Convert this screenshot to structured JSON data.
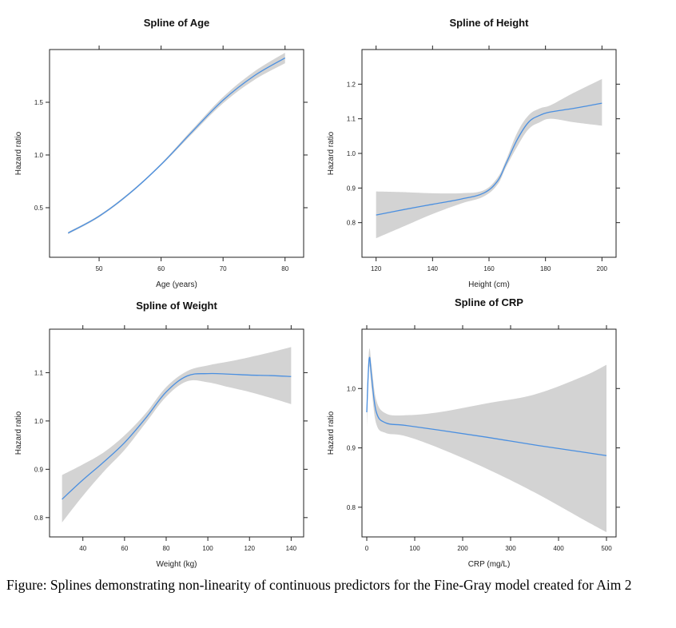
{
  "caption": "Figure: Splines demonstrating non-linearity of continuous predictors for the Fine-Gray model created for Aim 2",
  "colors": {
    "fit": "#4a8fe0",
    "band": "#d3d3d3",
    "frame": "#222222"
  },
  "chart_data": [
    {
      "type": "line",
      "title": "Spline of Age",
      "xlabel": "Age (years)",
      "ylabel": "Hazard ratio",
      "xlim": [
        42,
        83
      ],
      "ylim": [
        0.03,
        2.0
      ],
      "xticks": [
        50,
        60,
        70,
        80
      ],
      "yticks": [
        0.5,
        1.0,
        1.5
      ],
      "xtick_labels": [
        "50",
        "60",
        "70",
        "80"
      ],
      "ytick_labels": [
        "0.5",
        "1.0",
        "1.5"
      ],
      "x": [
        45,
        50,
        55,
        60,
        65,
        70,
        75,
        80
      ],
      "y": [
        0.26,
        0.42,
        0.64,
        0.91,
        1.22,
        1.52,
        1.75,
        1.92
      ],
      "lower": [
        0.25,
        0.41,
        0.63,
        0.9,
        1.2,
        1.49,
        1.71,
        1.87
      ],
      "upper": [
        0.27,
        0.43,
        0.65,
        0.92,
        1.24,
        1.55,
        1.79,
        1.97
      ]
    },
    {
      "type": "line",
      "title": "Spline of Height",
      "xlabel": "Height (cm)",
      "ylabel": "Hazard ratio",
      "xlim": [
        115,
        205
      ],
      "ylim": [
        0.7,
        1.3
      ],
      "xticks": [
        120,
        140,
        160,
        180,
        200
      ],
      "yticks": [
        0.8,
        0.9,
        1.0,
        1.1,
        1.2
      ],
      "xtick_labels": [
        "120",
        "140",
        "160",
        "180",
        "200"
      ],
      "ytick_labels": [
        "0.8",
        "0.9",
        "1.0",
        "1.1",
        "1.2"
      ],
      "x": [
        120,
        130,
        140,
        150,
        158,
        163,
        166,
        170,
        174,
        178,
        182,
        190,
        200
      ],
      "y": [
        0.822,
        0.838,
        0.853,
        0.868,
        0.885,
        0.92,
        0.97,
        1.04,
        1.09,
        1.11,
        1.12,
        1.13,
        1.145
      ],
      "lower": [
        0.755,
        0.79,
        0.825,
        0.855,
        0.875,
        0.91,
        0.96,
        1.02,
        1.07,
        1.09,
        1.1,
        1.09,
        1.08
      ],
      "upper": [
        0.89,
        0.888,
        0.885,
        0.885,
        0.893,
        0.93,
        0.98,
        1.06,
        1.11,
        1.13,
        1.14,
        1.175,
        1.215
      ]
    },
    {
      "type": "line",
      "title": "Spline of Weight",
      "xlabel": "Weight (kg)",
      "ylabel": "Hazard ratio",
      "xlim": [
        24,
        146
      ],
      "ylim": [
        0.76,
        1.19
      ],
      "xticks": [
        40,
        60,
        80,
        100,
        120,
        140
      ],
      "yticks": [
        0.8,
        0.9,
        1.0,
        1.1
      ],
      "xtick_labels": [
        "40",
        "60",
        "80",
        "100",
        "120",
        "140"
      ],
      "ytick_labels": [
        "0.8",
        "0.9",
        "1.0",
        "1.1"
      ],
      "x": [
        30,
        40,
        50,
        60,
        70,
        80,
        90,
        100,
        110,
        120,
        130,
        140
      ],
      "y": [
        0.838,
        0.878,
        0.915,
        0.955,
        1.005,
        1.06,
        1.093,
        1.098,
        1.097,
        1.095,
        1.094,
        1.092
      ],
      "lower": [
        0.79,
        0.845,
        0.895,
        0.94,
        0.995,
        1.05,
        1.082,
        1.08,
        1.07,
        1.06,
        1.048,
        1.035
      ],
      "upper": [
        0.888,
        0.91,
        0.935,
        0.97,
        1.015,
        1.07,
        1.103,
        1.115,
        1.123,
        1.132,
        1.142,
        1.153
      ]
    },
    {
      "type": "line",
      "title": "Spline of CRP",
      "xlabel": "CRP (mg/L)",
      "ylabel": "Hazard ratio",
      "xlim": [
        -10,
        520
      ],
      "ylim": [
        0.75,
        1.1
      ],
      "xticks": [
        0,
        100,
        200,
        300,
        400,
        500
      ],
      "yticks": [
        0.8,
        0.9,
        1.0
      ],
      "xtick_labels": [
        "0",
        "100",
        "200",
        "300",
        "400",
        "500"
      ],
      "ytick_labels": [
        "0.8",
        "0.9",
        "1.0"
      ],
      "x": [
        0,
        5,
        10,
        20,
        40,
        80,
        150,
        250,
        350,
        450,
        500
      ],
      "y": [
        0.96,
        1.05,
        1.02,
        0.96,
        0.942,
        0.938,
        0.93,
        0.918,
        0.905,
        0.893,
        0.887
      ],
      "lower": [
        0.935,
        1.035,
        1.0,
        0.94,
        0.925,
        0.92,
        0.9,
        0.865,
        0.825,
        0.78,
        0.758
      ],
      "upper": [
        0.985,
        1.065,
        1.04,
        0.98,
        0.958,
        0.955,
        0.96,
        0.975,
        0.99,
        1.02,
        1.04
      ]
    }
  ]
}
